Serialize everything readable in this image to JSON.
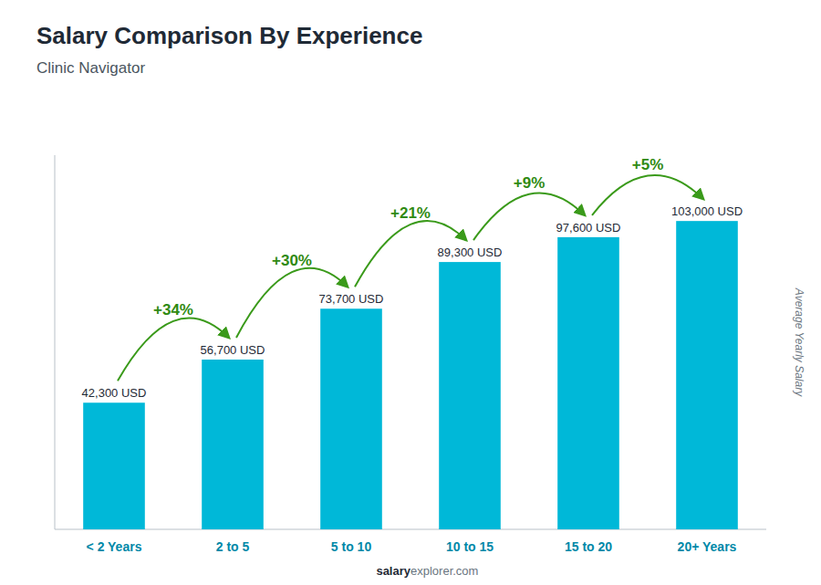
{
  "chart_data": {
    "type": "bar",
    "title": "Salary Comparison By Experience",
    "subtitle": "Clinic Navigator",
    "ylabel": "Average Yearly Salary",
    "categories": [
      "< 2 Years",
      "2 to 5",
      "5 to 10",
      "10 to 15",
      "15 to 20",
      "20+ Years"
    ],
    "values": [
      42300,
      56700,
      73700,
      89300,
      97600,
      103000
    ],
    "value_labels": [
      "42,300 USD",
      "56,700 USD",
      "73,700 USD",
      "89,300 USD",
      "97,600 USD",
      "103,000 USD"
    ],
    "data_labels": true,
    "annotations": [
      "+34%",
      "+30%",
      "+21%",
      "+9%",
      "+5%"
    ],
    "footer": [
      "salary",
      "explorer.com"
    ],
    "color": "#00b8d8",
    "ylim": [
      0,
      125000
    ],
    "grid": false,
    "tick_labels": "x"
  }
}
